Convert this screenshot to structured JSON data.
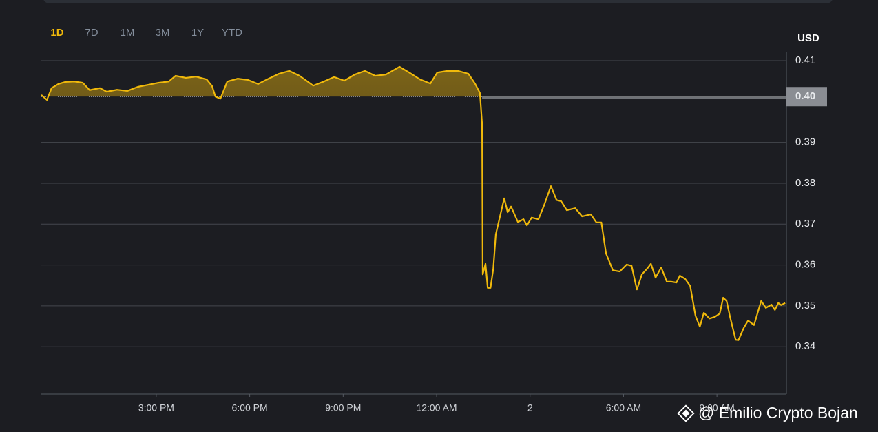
{
  "range_tabs": [
    "1D",
    "7D",
    "1M",
    "3M",
    "1Y",
    "YTD"
  ],
  "active_tab_index": 0,
  "watermark": "@ Emilio Crypto Bojan",
  "chart_data": {
    "type": "line",
    "y_label": "USD",
    "x": [
      11.31,
      11.49,
      11.64,
      11.86,
      12.08,
      12.37,
      12.64,
      12.86,
      13.19,
      13.41,
      13.74,
      14.07,
      14.41,
      14.74,
      15.07,
      15.4,
      15.62,
      15.95,
      16.28,
      16.62,
      16.79,
      16.9,
      17.06,
      17.28,
      17.61,
      17.94,
      18.27,
      18.61,
      18.94,
      19.27,
      19.6,
      20.04,
      20.38,
      20.71,
      21.04,
      21.37,
      21.7,
      22.03,
      22.37,
      22.81,
      23.14,
      23.47,
      23.8,
      24.02,
      24.35,
      24.69,
      25.02,
      25.24,
      25.39,
      25.46,
      25.48,
      25.57,
      25.64,
      25.73,
      25.82,
      25.9,
      26.17,
      26.28,
      26.39,
      26.61,
      26.79,
      26.9,
      27.05,
      27.27,
      27.45,
      27.67,
      27.85,
      28.0,
      28.18,
      28.45,
      28.67,
      28.95,
      29.13,
      29.29,
      29.44,
      29.66,
      29.88,
      30.1,
      30.26,
      30.43,
      30.59,
      30.77,
      30.88,
      31.03,
      31.21,
      31.39,
      31.54,
      31.7,
      31.81,
      31.98,
      32.14,
      32.31,
      32.45,
      32.58,
      32.76,
      32.93,
      33.09,
      33.2,
      33.31,
      33.42,
      33.6,
      33.69,
      33.86,
      34.0,
      34.19,
      34.42,
      34.57,
      34.75,
      34.86,
      34.97,
      35.06,
      35.19
    ],
    "series": [
      {
        "color": "#f0b90b",
        "values": [
          0.4016,
          0.4004,
          0.4033,
          0.4043,
          0.4048,
          0.4049,
          0.4046,
          0.4028,
          0.4033,
          0.4024,
          0.4029,
          0.4026,
          0.4036,
          0.4041,
          0.4046,
          0.4049,
          0.4063,
          0.4058,
          0.4061,
          0.4054,
          0.4038,
          0.4012,
          0.4007,
          0.4049,
          0.4056,
          0.4053,
          0.4043,
          0.4056,
          0.4068,
          0.4075,
          0.4063,
          0.4039,
          0.4049,
          0.406,
          0.4051,
          0.4066,
          0.4075,
          0.4063,
          0.4066,
          0.4085,
          0.407,
          0.4054,
          0.4044,
          0.4071,
          0.4075,
          0.4075,
          0.4068,
          0.4043,
          0.4021,
          0.3945,
          0.3577,
          0.3603,
          0.3544,
          0.3544,
          0.3591,
          0.3675,
          0.3763,
          0.3729,
          0.3743,
          0.3705,
          0.3712,
          0.3697,
          0.3716,
          0.3712,
          0.3746,
          0.3793,
          0.3759,
          0.3756,
          0.3734,
          0.3739,
          0.3719,
          0.3724,
          0.3704,
          0.3704,
          0.3628,
          0.3587,
          0.3584,
          0.3601,
          0.3598,
          0.354,
          0.3577,
          0.3592,
          0.3603,
          0.3569,
          0.3594,
          0.3559,
          0.3559,
          0.3557,
          0.3574,
          0.3566,
          0.3549,
          0.3476,
          0.3449,
          0.3483,
          0.3469,
          0.3473,
          0.3481,
          0.352,
          0.3512,
          0.3473,
          0.3417,
          0.3416,
          0.3446,
          0.3464,
          0.3453,
          0.3512,
          0.3495,
          0.3503,
          0.349,
          0.3507,
          0.3502,
          0.3507
        ]
      }
    ],
    "baseline": {
      "value": 0.4012,
      "label": "0.40"
    },
    "xlim": [
      11.31,
      35.23
    ],
    "ylim": [
      0.3284,
      0.4122
    ],
    "xticks": [
      {
        "value": 15,
        "label": "3:00 PM"
      },
      {
        "value": 18,
        "label": "6:00 PM"
      },
      {
        "value": 21,
        "label": "9:00 PM"
      },
      {
        "value": 24,
        "label": "12:00 AM"
      },
      {
        "value": 27,
        "label": "2"
      },
      {
        "value": 30,
        "label": "6:00 AM"
      },
      {
        "value": 33,
        "label": "9:00 AM"
      }
    ],
    "yticks": [
      0.34,
      0.35,
      0.36,
      0.37,
      0.38,
      0.39,
      0.41
    ],
    "grid": true
  }
}
